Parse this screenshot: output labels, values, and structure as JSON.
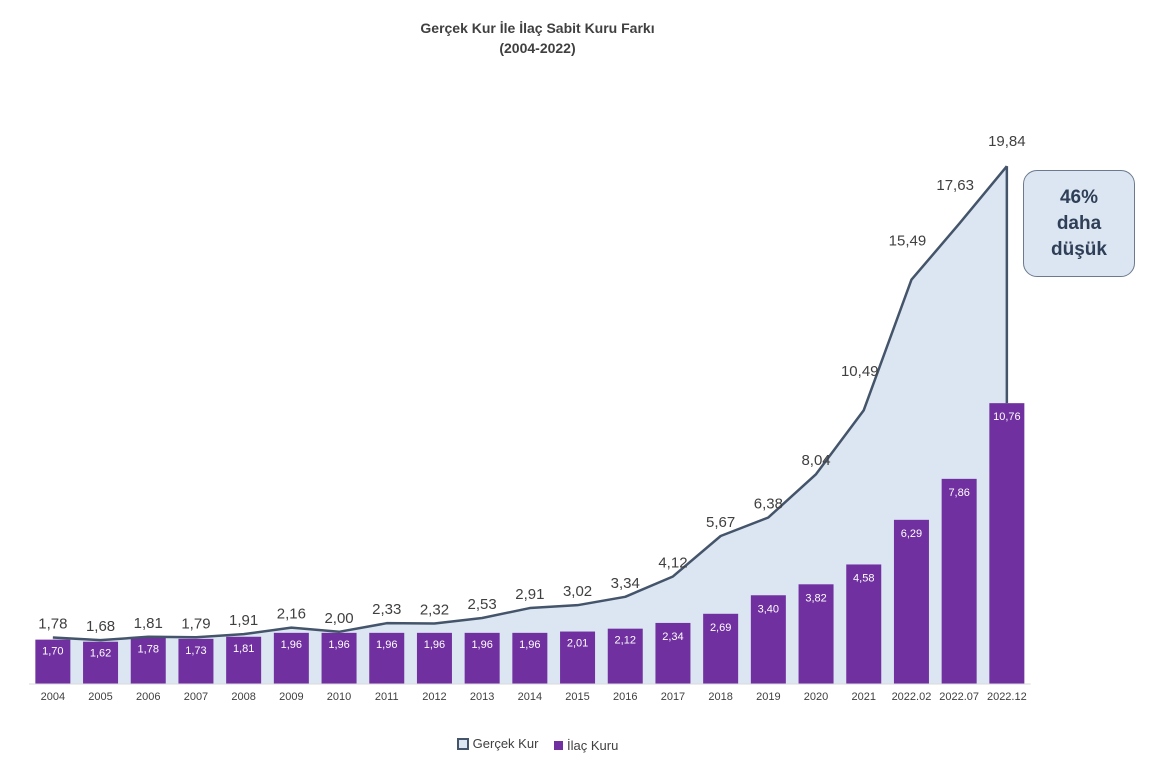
{
  "chart_data": {
    "type": "bar",
    "title": "Gerçek Kur İle İlaç Sabit Kuru Farkı",
    "subtitle": "(2004-2022)",
    "categories": [
      "2004",
      "2005",
      "2006",
      "2007",
      "2008",
      "2009",
      "2010",
      "2011",
      "2012",
      "2013",
      "2014",
      "2015",
      "2016",
      "2017",
      "2018",
      "2019",
      "2020",
      "2021",
      "2022.02",
      "2022.07",
      "2022.12"
    ],
    "series": [
      {
        "name": "Gerçek Kur",
        "kind": "area-line",
        "color": "#44546a",
        "fill": "#dce6f2",
        "values": [
          1.78,
          1.68,
          1.81,
          1.79,
          1.91,
          2.16,
          2.0,
          2.33,
          2.32,
          2.53,
          2.91,
          3.02,
          3.34,
          4.12,
          5.67,
          6.38,
          8.04,
          10.49,
          15.49,
          17.63,
          19.84
        ],
        "labels": [
          "1,78",
          "1,68",
          "1,81",
          "1,79",
          "1,91",
          "2,16",
          "2,00",
          "2,33",
          "2,32",
          "2,53",
          "2,91",
          "3,02",
          "3,34",
          "4,12",
          "5,67",
          "6,38",
          "8,04",
          "10,49",
          "15,49",
          "17,63",
          "19,84"
        ]
      },
      {
        "name": "İlaç Kuru",
        "kind": "bar",
        "color": "#7030a0",
        "values": [
          1.7,
          1.62,
          1.78,
          1.73,
          1.81,
          1.96,
          1.96,
          1.96,
          1.96,
          1.96,
          1.96,
          2.01,
          2.12,
          2.34,
          2.69,
          3.4,
          3.82,
          4.58,
          6.29,
          7.86,
          10.76
        ],
        "labels": [
          "1,70",
          "1,62",
          "1,78",
          "1,73",
          "1,81",
          "1,96",
          "1,96",
          "1,96",
          "1,96",
          "1,96",
          "1,96",
          "2,01",
          "2,12",
          "2,34",
          "2,69",
          "3,40",
          "3,82",
          "4,58",
          "6,29",
          "7,86",
          "10,76"
        ]
      }
    ],
    "ylim": [
      0,
      20
    ],
    "grid": false,
    "legend": "bottom",
    "annotation": "46%\ndaha\ndüşük"
  }
}
